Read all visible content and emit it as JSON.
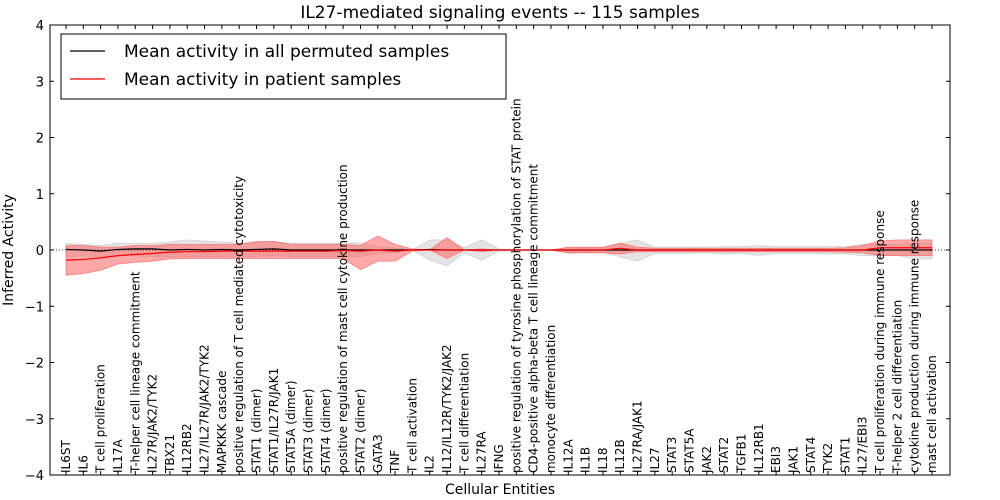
{
  "chart_data": {
    "type": "line",
    "title": "IL27-mediated signaling events -- 115 samples",
    "xlabel": "Cellular Entities",
    "ylabel": "Inferred Activity",
    "ylim": [
      -4,
      4
    ],
    "yticks": [
      -4,
      -3,
      -2,
      -1,
      0,
      1,
      2,
      3,
      4
    ],
    "ytick_labels": [
      "−4",
      "−3",
      "−2",
      "−1",
      "0",
      "1",
      "2",
      "3",
      "4"
    ],
    "categories": [
      "IL6ST",
      "IL6",
      "T cell proliferation",
      "IL17A",
      "T-helper cell lineage commitment",
      "IL27R/JAK2/TYK2",
      "TBX21",
      "IL12RB2",
      "IL27/IL27R/JAK2/TYK2",
      "MAPKKK cascade",
      "positive regulation of T cell mediated cytotoxicity",
      "STAT1 (dimer)",
      "STAT1/IL27R/JAK1",
      "STAT5A (dimer)",
      "STAT3 (dimer)",
      "STAT4 (dimer)",
      "positive regulation of mast cell cytokine production",
      "STAT2 (dimer)",
      "GATA3",
      "TNF",
      "T cell activation",
      "IL2",
      "IL12/IL12R/TYK2/JAK2",
      "T cell differentiation",
      "IL27RA",
      "IFNG",
      "positive regulation of tyrosine phosphorylation of STAT protein",
      "CD4-positive alpha-beta T cell lineage commitment",
      "monocyte differentiation",
      "IL12A",
      "IL1B",
      "IL18",
      "IL12B",
      "IL27RA/JAK1",
      "IL27",
      "STAT3",
      "STAT5A",
      "JAK2",
      "STAT2",
      "TGFB1",
      "IL12RB1",
      "EBI3",
      "JAK1",
      "STAT4",
      "TYK2",
      "STAT1",
      "IL27/EBI3",
      "T cell proliferation during immune response",
      "T-helper 2 cell differentiation",
      "cytokine production during immune response",
      "mast cell activation"
    ],
    "series": [
      {
        "name": "Mean activity in all permuted samples",
        "color": "#000000",
        "values": [
          0.01,
          0.0,
          -0.02,
          0.01,
          0.02,
          0.02,
          0.0,
          0.01,
          0.0,
          0.01,
          0.0,
          0.01,
          0.02,
          0.0,
          0.0,
          0.0,
          0.0,
          0.0,
          0.0,
          0.0,
          0.0,
          0.01,
          0.0,
          0.0,
          0.0,
          0.0,
          0.0,
          0.0,
          0.0,
          0.0,
          0.0,
          0.0,
          0.0,
          0.0,
          0.0,
          0.0,
          0.0,
          0.0,
          0.0,
          0.0,
          0.0,
          0.0,
          0.0,
          0.0,
          0.0,
          0.0,
          0.0,
          0.0,
          0.0,
          0.0,
          0.0
        ],
        "lower": [
          -0.12,
          -0.1,
          -0.12,
          -0.1,
          -0.1,
          -0.12,
          -0.12,
          -0.12,
          -0.12,
          -0.12,
          -0.12,
          -0.12,
          -0.1,
          -0.12,
          -0.12,
          -0.12,
          -0.12,
          -0.12,
          -0.06,
          -0.04,
          0.0,
          -0.18,
          -0.28,
          -0.05,
          -0.18,
          -0.02,
          0.0,
          0.0,
          0.0,
          -0.06,
          -0.04,
          -0.04,
          -0.12,
          -0.2,
          -0.06,
          -0.06,
          -0.06,
          -0.05,
          -0.07,
          -0.06,
          -0.1,
          -0.06,
          -0.06,
          -0.06,
          -0.07,
          -0.07,
          -0.1,
          -0.1,
          -0.1,
          -0.16,
          -0.16
        ],
        "upper": [
          0.12,
          0.1,
          0.08,
          0.12,
          0.12,
          0.12,
          0.14,
          0.18,
          0.16,
          0.14,
          0.12,
          0.14,
          0.15,
          0.12,
          0.12,
          0.12,
          0.12,
          0.12,
          0.06,
          0.04,
          0.0,
          0.18,
          0.18,
          0.04,
          0.18,
          0.02,
          0.0,
          0.0,
          0.0,
          0.04,
          0.04,
          0.04,
          0.12,
          0.18,
          0.05,
          0.05,
          0.05,
          0.05,
          0.06,
          0.06,
          0.08,
          0.06,
          0.06,
          0.06,
          0.06,
          0.06,
          0.1,
          0.1,
          0.1,
          0.12,
          0.12
        ]
      },
      {
        "name": "Mean activity in patient samples",
        "color": "#ff0000",
        "values": [
          -0.18,
          -0.17,
          -0.14,
          -0.1,
          -0.08,
          -0.06,
          -0.04,
          -0.03,
          -0.03,
          -0.02,
          -0.02,
          -0.02,
          -0.02,
          -0.02,
          -0.02,
          -0.02,
          -0.01,
          -0.02,
          0.0,
          -0.02,
          0.0,
          0.0,
          0.0,
          0.0,
          0.0,
          0.0,
          0.0,
          0.0,
          0.0,
          0.0,
          0.0,
          0.0,
          0.03,
          0.0,
          0.0,
          0.0,
          0.0,
          0.0,
          0.0,
          0.0,
          0.0,
          0.0,
          0.0,
          0.0,
          0.0,
          0.0,
          0.0,
          0.04,
          0.04,
          0.04,
          0.04
        ],
        "lower": [
          -0.45,
          -0.42,
          -0.36,
          -0.25,
          -0.22,
          -0.2,
          -0.16,
          -0.15,
          -0.15,
          -0.15,
          -0.15,
          -0.15,
          -0.15,
          -0.15,
          -0.15,
          -0.15,
          -0.15,
          -0.35,
          -0.2,
          -0.2,
          -0.02,
          0.0,
          -0.15,
          0.0,
          -0.03,
          0.0,
          0.0,
          0.0,
          0.0,
          -0.05,
          -0.05,
          -0.05,
          -0.07,
          -0.03,
          -0.03,
          -0.03,
          -0.03,
          -0.03,
          -0.03,
          -0.03,
          -0.03,
          -0.03,
          -0.03,
          -0.03,
          -0.03,
          -0.04,
          -0.05,
          -0.1,
          -0.1,
          -0.1,
          -0.1
        ],
        "upper": [
          0.08,
          0.08,
          0.05,
          0.05,
          0.08,
          0.08,
          0.1,
          0.1,
          0.1,
          0.1,
          0.1,
          0.15,
          0.15,
          0.1,
          0.1,
          0.1,
          0.1,
          0.08,
          0.25,
          0.1,
          0.02,
          0.0,
          0.22,
          0.0,
          0.02,
          0.0,
          0.0,
          0.0,
          0.0,
          0.05,
          0.05,
          0.05,
          0.12,
          0.05,
          0.03,
          0.03,
          0.03,
          0.03,
          0.03,
          0.03,
          0.03,
          0.03,
          0.03,
          0.03,
          0.03,
          0.04,
          0.08,
          0.16,
          0.18,
          0.18,
          0.18
        ]
      }
    ],
    "band_colors": [
      "#bbbbbb",
      "#ff6060"
    ],
    "legend_placement": "top-left"
  }
}
